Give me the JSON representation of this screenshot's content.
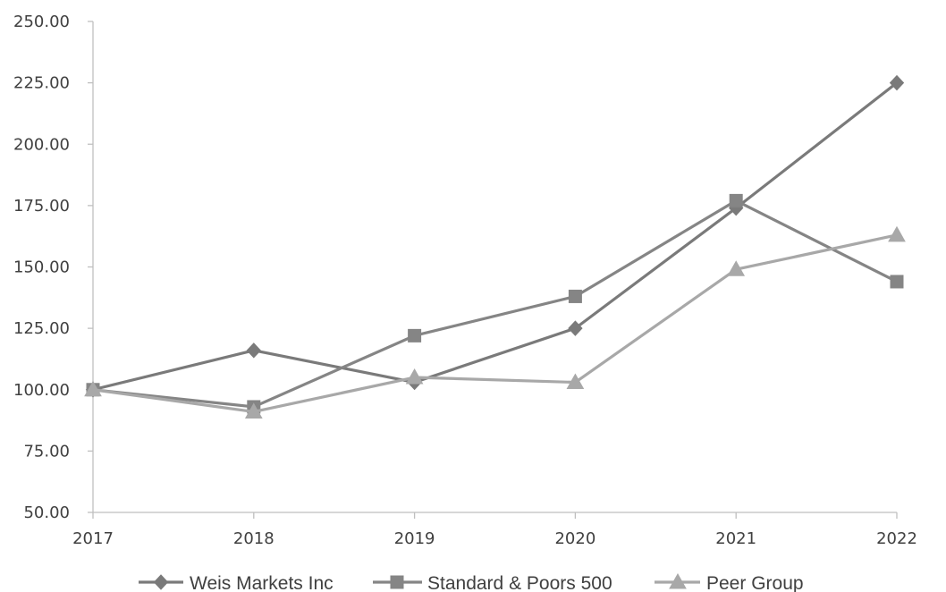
{
  "chart_data": {
    "type": "line",
    "title": "",
    "xlabel": "",
    "ylabel": "",
    "categories": [
      "2017",
      "2018",
      "2019",
      "2020",
      "2021",
      "2022"
    ],
    "y_ticks": [
      "50.00",
      "75.00",
      "100.00",
      "125.00",
      "150.00",
      "175.00",
      "200.00",
      "225.00",
      "250.00"
    ],
    "ylim": [
      50,
      250
    ],
    "grid": false,
    "legend_position": "bottom",
    "series": [
      {
        "name": "Weis Markets Inc",
        "marker": "diamond",
        "color": "#7a7a7a",
        "values": [
          100,
          116,
          103,
          125,
          174,
          225
        ]
      },
      {
        "name": "Standard & Poors 500",
        "marker": "square",
        "color": "#858585",
        "values": [
          100,
          93,
          122,
          138,
          177,
          144
        ]
      },
      {
        "name": "Peer Group",
        "marker": "triangle",
        "color": "#a8a8a8",
        "values": [
          100,
          91,
          105,
          103,
          149,
          163
        ]
      }
    ]
  }
}
